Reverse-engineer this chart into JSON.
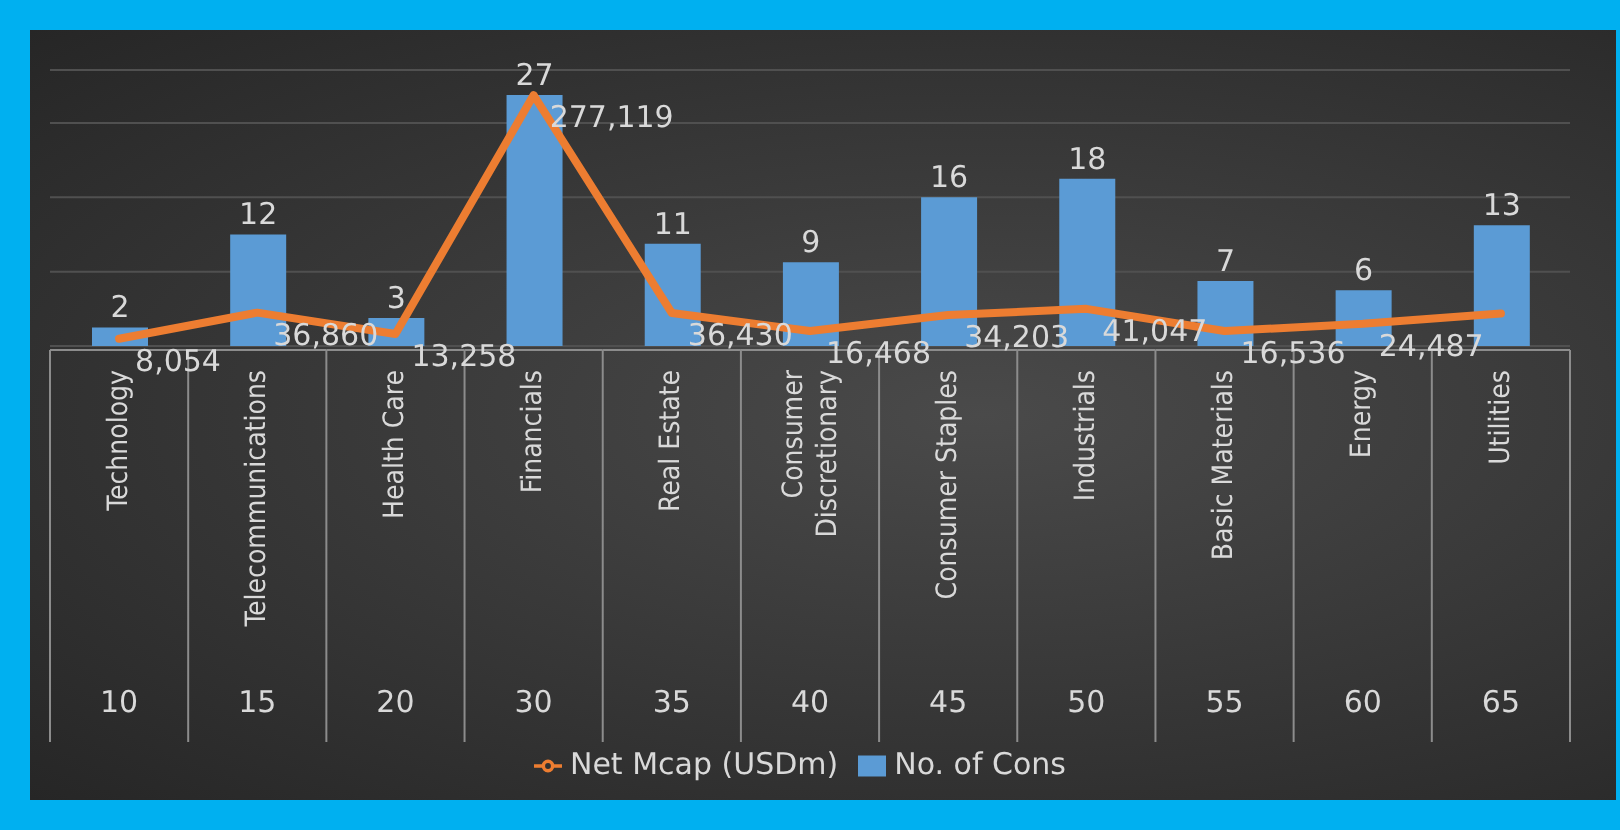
{
  "chart_data": {
    "type": "bar",
    "categories": [
      "Technology",
      "Telecommunications",
      "Health Care",
      "Financials",
      "Real Estate",
      "Consumer Discretionary",
      "Consumer Staples",
      "Industrials",
      "Basic Materials",
      "Energy",
      "Utilities"
    ],
    "series": [
      {
        "name": "No. of Cons",
        "color": "#5b9bd5",
        "values": [
          2,
          12,
          3,
          27,
          11,
          9,
          16,
          18,
          7,
          6,
          13
        ]
      },
      {
        "name": "Net Mcap (USDm)",
        "type": "line",
        "axis": "y2",
        "color": "#ed7d31",
        "values": [
          8054,
          36860,
          13258,
          277119,
          36430,
          16468,
          34203,
          41047,
          16536,
          24487,
          36000
        ],
        "value_labels": [
          "8,054",
          "36,860",
          "13,258",
          "277,119",
          "36,430",
          "16,468",
          "34,203",
          "41,047",
          "16,536",
          "24,487",
          null
        ]
      }
    ],
    "annotations": [
      "10",
      "15",
      "20",
      "30",
      "35",
      "40",
      "45",
      "50",
      "55",
      "60",
      "65"
    ],
    "data_labels": true,
    "grid": "y",
    "legend": "bottom",
    "line_style": "solid",
    "marker": "none"
  }
}
